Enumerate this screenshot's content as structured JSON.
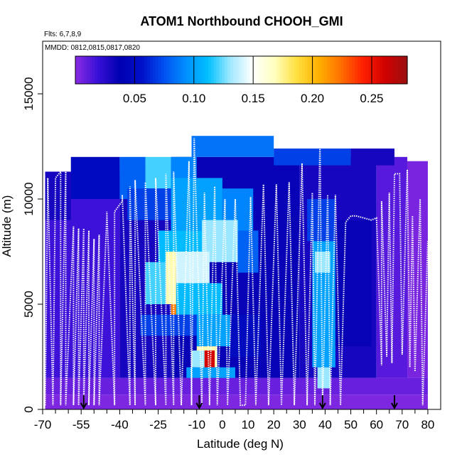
{
  "chart_data": {
    "type": "heatmap",
    "title": "ATOM1 Northbound CHOOH_GMI",
    "flights_label": "Flts: 6,7,8,9",
    "dates_label": "MMDD: 0812,0815,0817,0820",
    "xlabel": "Latitude (deg N)",
    "ylabel": "Altitude (m)",
    "xlim": [
      -70,
      85
    ],
    "ylim": [
      0,
      17500
    ],
    "x_ticks": [
      -70,
      -55,
      -40,
      -25,
      -10,
      0,
      10,
      20,
      30,
      40,
      50,
      60,
      70,
      80
    ],
    "x_tick_labels": [
      "-70",
      "-55",
      "-40",
      "-25",
      "-10",
      "0",
      "10",
      "20",
      "30",
      "40",
      "50",
      "60",
      "70",
      "80"
    ],
    "x_minor_ticks": [
      -65,
      -60,
      -50,
      -45,
      -35,
      -30,
      -20,
      -15,
      -5,
      5,
      15,
      25,
      35,
      45,
      55,
      65,
      75
    ],
    "y_ticks": [
      0,
      5000,
      10000,
      15000
    ],
    "y_tick_labels": [
      "0",
      "5000",
      "10000",
      "15000"
    ],
    "colorbar": {
      "range": [
        0,
        0.28
      ],
      "ticks": [
        0.05,
        0.1,
        0.15,
        0.2,
        0.25
      ],
      "tick_labels": [
        "0.05",
        "0.10",
        "0.15",
        "0.20",
        "0.25"
      ],
      "colors": [
        "#8a2be2",
        "#3a10d8",
        "#0000b0",
        "#0010c8",
        "#0050f0",
        "#0090ff",
        "#00c0ff",
        "#a0e8ff",
        "#ffffff",
        "#ffffc0",
        "#ffe040",
        "#ffb000",
        "#ff7000",
        "#ff2000",
        "#d00000",
        "#9a1010"
      ]
    },
    "flight_arrows_lat": [
      -54,
      -9,
      39,
      67
    ],
    "cells": [
      {
        "x0": -69,
        "x1": 80,
        "y0": 0,
        "y1": 700,
        "v": 0.003
      },
      {
        "x0": -69,
        "x1": 80,
        "y0": 700,
        "y1": 1500,
        "v": 0.008
      },
      {
        "x0": -69,
        "x1": -40,
        "y0": 1500,
        "y1": 11300,
        "v": 0.018
      },
      {
        "x0": -40,
        "x1": -20,
        "y0": 1500,
        "y1": 11800,
        "v": 0.03
      },
      {
        "x0": -20,
        "x1": 30,
        "y0": 1500,
        "y1": 12000,
        "v": 0.035
      },
      {
        "x0": 30,
        "x1": 60,
        "y0": 1500,
        "y1": 12000,
        "v": 0.03
      },
      {
        "x0": 60,
        "x1": 72,
        "y0": 1500,
        "y1": 12000,
        "v": 0.012
      },
      {
        "x0": 72,
        "x1": 80,
        "y0": 1500,
        "y1": 11800,
        "v": 0.004
      },
      {
        "x0": -69,
        "x1": -59,
        "y0": 9000,
        "y1": 11300,
        "v": 0.03
      },
      {
        "x0": -59,
        "x1": -40,
        "y0": 10000,
        "y1": 12000,
        "v": 0.05
      },
      {
        "x0": -40,
        "x1": -30,
        "y0": 10000,
        "y1": 12000,
        "v": 0.08
      },
      {
        "x0": -30,
        "x1": -20,
        "y0": 10500,
        "y1": 12000,
        "v": 0.12
      },
      {
        "x0": -20,
        "x1": -10,
        "y0": 10500,
        "y1": 12000,
        "v": 0.09
      },
      {
        "x0": -12,
        "x1": 20,
        "y0": 12000,
        "y1": 13000,
        "v": 0.085
      },
      {
        "x0": 20,
        "x1": 50,
        "y0": 11600,
        "y1": 12400,
        "v": 0.07
      },
      {
        "x0": 50,
        "x1": 67,
        "y0": 11600,
        "y1": 12400,
        "v": 0.03
      },
      {
        "x0": -37,
        "x1": -20,
        "y0": 9000,
        "y1": 10500,
        "v": 0.07
      },
      {
        "x0": -20,
        "x1": 0,
        "y0": 8500,
        "y1": 11000,
        "v": 0.1
      },
      {
        "x0": 0,
        "x1": 12,
        "y0": 8000,
        "y1": 10500,
        "v": 0.09
      },
      {
        "x0": -25,
        "x1": -8,
        "y0": 6800,
        "y1": 8500,
        "v": 0.11
      },
      {
        "x0": -8,
        "x1": 6,
        "y0": 7000,
        "y1": 9000,
        "v": 0.13
      },
      {
        "x0": 6,
        "x1": 14,
        "y0": 6500,
        "y1": 8500,
        "v": 0.08
      },
      {
        "x0": -30,
        "x1": -22,
        "y0": 5000,
        "y1": 7000,
        "v": 0.12
      },
      {
        "x0": -22,
        "x1": -18,
        "y0": 5000,
        "y1": 7500,
        "v": 0.17
      },
      {
        "x0": -20,
        "x1": -17,
        "y0": 4500,
        "y1": 5000,
        "v": 0.22
      },
      {
        "x0": -18,
        "x1": -5,
        "y0": 5000,
        "y1": 7500,
        "v": 0.14
      },
      {
        "x0": -18,
        "x1": 0,
        "y0": 4500,
        "y1": 6000,
        "v": 0.11
      },
      {
        "x0": -32,
        "x1": -10,
        "y0": 3500,
        "y1": 4500,
        "v": 0.07
      },
      {
        "x0": -10,
        "x1": 5,
        "y0": 3000,
        "y1": 4500,
        "v": 0.1
      },
      {
        "x0": -10,
        "x1": -2,
        "y0": 2000,
        "y1": 3000,
        "v": 0.17
      },
      {
        "x0": -7,
        "x1": -3,
        "y0": 2000,
        "y1": 2800,
        "v": 0.26
      },
      {
        "x0": -12,
        "x1": -7,
        "y0": 2000,
        "y1": 2800,
        "v": 0.13
      },
      {
        "x0": -14,
        "x1": 5,
        "y0": 1500,
        "y1": 2000,
        "v": 0.1
      },
      {
        "x0": 3,
        "x1": 15,
        "y0": 2500,
        "y1": 4500,
        "v": 0.05
      },
      {
        "x0": 35,
        "x1": 44,
        "y0": 2000,
        "y1": 8000,
        "v": 0.1
      },
      {
        "x0": 36,
        "x1": 42,
        "y0": 6500,
        "y1": 7500,
        "v": 0.13
      },
      {
        "x0": 33,
        "x1": 44,
        "y0": 8000,
        "y1": 10000,
        "v": 0.07
      },
      {
        "x0": 37,
        "x1": 42,
        "y0": 1000,
        "y1": 2000,
        "v": 0.13
      },
      {
        "x0": 44,
        "x1": 58,
        "y0": 3000,
        "y1": 9000,
        "v": 0.035
      }
    ],
    "flight_tracks": [
      {
        "name": "flight-track-south",
        "lat": [
          -69,
          -68,
          -68,
          -66,
          -65,
          -63,
          -63,
          -61,
          -61,
          -58,
          -58,
          -56,
          -56,
          -54,
          -54,
          -52,
          -52,
          -50,
          -50,
          -48,
          -48,
          -45,
          -45,
          -42,
          -42,
          -39,
          -39,
          -36,
          -36,
          -34,
          -34,
          -30,
          -30,
          -26,
          -26,
          -22,
          -22,
          -19,
          -19,
          -16
        ],
        "alt": [
          200,
          10700,
          11000,
          200,
          11000,
          11300,
          200,
          11300,
          200,
          8700,
          200,
          8600,
          200,
          8600,
          200,
          8500,
          200,
          8100,
          200,
          8300,
          200,
          9200,
          9400,
          200,
          9400,
          9900,
          10200,
          200,
          10600,
          200,
          10900,
          200,
          10800,
          200,
          11000,
          200,
          11200,
          200,
          11300,
          200
        ]
      },
      {
        "name": "flight-track-tropics",
        "lat": [
          -16,
          -13,
          -12,
          -11,
          -8,
          -7,
          -5,
          -3,
          -2,
          1,
          2,
          5,
          7,
          9,
          11,
          13,
          16,
          18,
          21,
          23,
          26,
          28,
          31,
          33
        ],
        "alt": [
          200,
          11800,
          200,
          12900,
          200,
          10300,
          200,
          10600,
          200,
          10000,
          200,
          10000,
          200,
          200,
          10100,
          200,
          10700,
          200,
          10700,
          200,
          10800,
          200,
          11700,
          200
        ]
      },
      {
        "name": "flight-track-north",
        "lat": [
          33,
          35,
          36,
          38,
          39,
          41,
          42,
          44,
          46,
          48,
          50,
          52,
          55,
          58,
          60,
          62,
          62,
          64,
          65,
          66,
          67,
          69,
          70,
          72,
          73,
          74,
          75,
          77,
          78,
          80
        ],
        "alt": [
          200,
          10300,
          200,
          12700,
          200,
          10200,
          200,
          10200,
          200,
          8900,
          9200,
          9200,
          9100,
          9000,
          9100,
          2100,
          9900,
          2500,
          10300,
          2200,
          11200,
          11200,
          2600,
          11400,
          2000,
          9200,
          1800,
          10000,
          200,
          8000
        ]
      }
    ]
  }
}
